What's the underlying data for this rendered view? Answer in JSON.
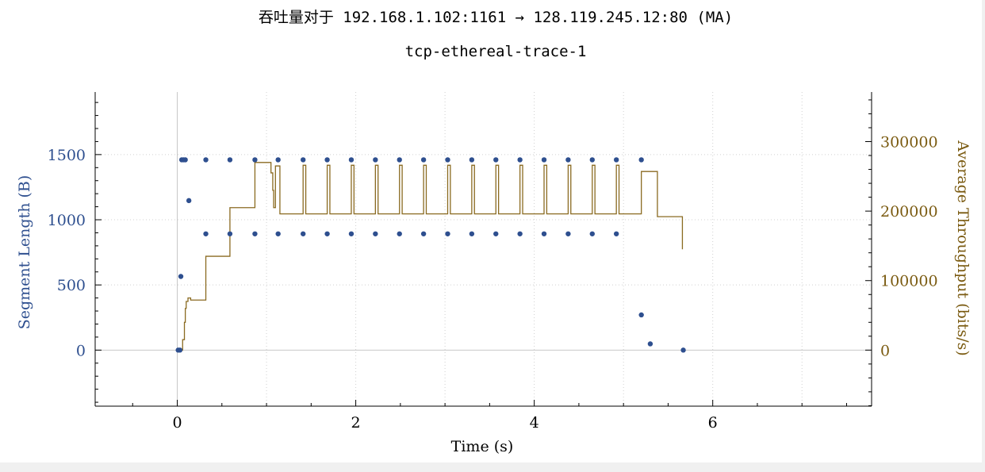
{
  "chart_data": {
    "type": "scatter",
    "title": "吞吐量对于 192.168.1.102:1161 → 128.119.245.12:80 (MA)",
    "subtitle": "tcp-ethereal-trace-1",
    "xlabel": "Time (s)",
    "ylabel_left": "Segment Length (B)",
    "ylabel_right": "Average Throughput (bits/s)",
    "xlim": [
      -0.92,
      7.78
    ],
    "ylim_left": [
      -430,
      1980
    ],
    "ylim_right": [
      -80650,
      371350
    ],
    "x_ticks": [
      0,
      2,
      4,
      6
    ],
    "y_left_ticks": [
      0,
      500,
      1000,
      1500
    ],
    "y_right_ticks": [
      0,
      100000,
      200000,
      300000
    ],
    "grid": true,
    "colors": {
      "segment": "#2e4f8f",
      "throughput": "#8a6a20",
      "grid": "#d0d0d0"
    },
    "series": [
      {
        "axis": "left",
        "style": "points",
        "x": [
          0.01,
          0.03,
          0.04,
          0.05,
          0.07,
          0.09,
          0.13,
          0.32,
          0.59,
          0.87,
          1.13,
          1.41,
          1.68,
          1.95,
          2.22,
          2.49,
          2.76,
          3.03,
          3.3,
          3.57,
          3.84,
          4.11,
          4.38,
          4.65,
          4.92,
          5.2,
          0.32,
          0.59,
          0.87,
          1.13,
          1.41,
          1.68,
          1.95,
          2.22,
          2.49,
          2.76,
          3.03,
          3.3,
          3.57,
          3.84,
          4.11,
          4.38,
          4.65,
          4.92,
          5.2,
          5.3,
          5.67
        ],
        "y": [
          0,
          0,
          565,
          1460,
          1460,
          1460,
          1147,
          1460,
          1460,
          1460,
          1460,
          1460,
          1460,
          1460,
          1460,
          1460,
          1460,
          1460,
          1460,
          1460,
          1460,
          1460,
          1460,
          1460,
          1460,
          1460,
          892,
          892,
          892,
          892,
          892,
          892,
          892,
          892,
          892,
          892,
          892,
          892,
          892,
          892,
          892,
          892,
          892,
          892,
          270,
          48,
          0
        ]
      },
      {
        "axis": "right",
        "style": "step",
        "x": [
          0.03,
          0.06,
          0.08,
          0.09,
          0.1,
          0.12,
          0.15,
          0.32,
          0.59,
          0.87,
          1.05,
          1.07,
          1.08,
          1.1,
          1.13,
          1.15,
          1.41,
          1.44,
          1.68,
          1.71,
          1.95,
          1.98,
          2.22,
          2.25,
          2.49,
          2.52,
          2.76,
          2.79,
          3.03,
          3.06,
          3.3,
          3.33,
          3.57,
          3.6,
          3.84,
          3.87,
          4.11,
          4.14,
          4.38,
          4.41,
          4.65,
          4.68,
          4.92,
          4.95,
          5.2,
          5.38,
          5.65,
          5.66
        ],
        "y": [
          0,
          15000,
          40000,
          60000,
          70000,
          75000,
          72000,
          135000,
          205000,
          270000,
          255000,
          230000,
          205000,
          265000,
          265000,
          196000,
          266000,
          196000,
          266000,
          196000,
          266000,
          196000,
          266000,
          196000,
          266000,
          196000,
          266000,
          196000,
          266000,
          196000,
          266000,
          196000,
          266000,
          196000,
          266000,
          196000,
          266000,
          196000,
          266000,
          196000,
          266000,
          196000,
          266000,
          196000,
          257000,
          192000,
          192000,
          145000
        ]
      }
    ]
  }
}
